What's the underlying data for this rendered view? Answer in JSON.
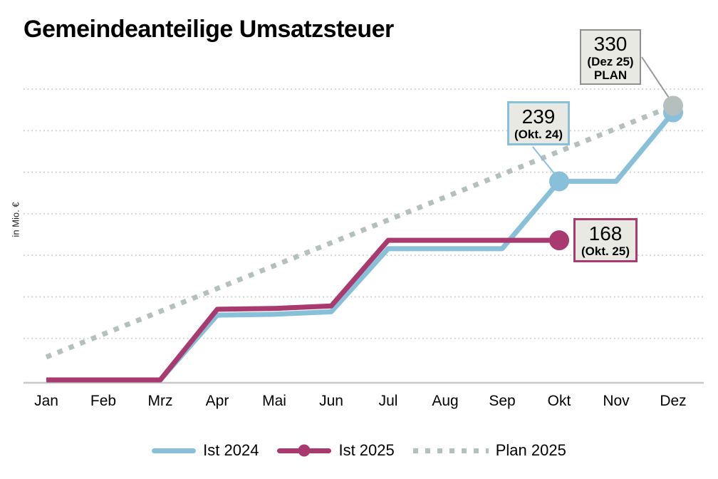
{
  "title": "Gemeindeanteilige Umsatzsteuer",
  "y_axis_label": "in Mio. €",
  "colors": {
    "ist2024": "#89c0d9",
    "ist2025": "#a93a6f",
    "plan2025": "#b5bfbe",
    "grid": "#cdcdcd",
    "axis": "#c6cbca",
    "annotation_fill": "#e9e9e4",
    "annotation_border_gray": "#8f8f8f",
    "callout_gray": "#999999",
    "text": "#000000"
  },
  "chart_data": {
    "type": "line",
    "title": "Gemeindeanteilige Umsatzsteuer",
    "xlabel": "",
    "ylabel": "in Mio. €",
    "ylim": [
      0,
      350
    ],
    "grid": true,
    "grid_values": [
      50,
      100,
      150,
      200,
      250,
      300,
      350
    ],
    "legend_position": "bottom",
    "categories": [
      "Jan",
      "Feb",
      "Mrz",
      "Apr",
      "Mai",
      "Jun",
      "Jul",
      "Aug",
      "Sep",
      "Okt",
      "Nov",
      "Dez"
    ],
    "series": [
      {
        "name": "Ist 2024",
        "style": "solid",
        "color": "#89c0d9",
        "values": [
          0,
          0,
          0,
          78,
          79,
          82,
          158,
          158,
          158,
          239,
          239,
          322
        ],
        "markers": [
          {
            "month": "Okt",
            "value": 239
          },
          {
            "month": "Dez",
            "value": 322
          }
        ]
      },
      {
        "name": "Ist 2025",
        "style": "solid",
        "color": "#a93a6f",
        "marker_in_legend": true,
        "values": [
          0,
          0,
          0,
          85,
          86,
          89,
          168,
          168,
          168,
          168,
          null,
          null
        ],
        "markers": [
          {
            "month": "Okt",
            "value": 168
          }
        ]
      },
      {
        "name": "Plan 2025",
        "style": "dotted",
        "color": "#b5bfbe",
        "values": [
          27.5,
          55,
          82.5,
          110,
          137.5,
          165,
          192.5,
          220,
          247.5,
          275,
          302.5,
          330
        ],
        "markers": [
          {
            "month": "Dez",
            "value": 330
          }
        ]
      }
    ]
  },
  "annotations": {
    "plan_dez": {
      "value": "330",
      "period": "(Dez 25)",
      "tag": "PLAN"
    },
    "ist_okt_24": {
      "value": "239",
      "period": "(Okt. 24)"
    },
    "ist_okt_25": {
      "value": "168",
      "period": "(Okt. 25)"
    }
  }
}
